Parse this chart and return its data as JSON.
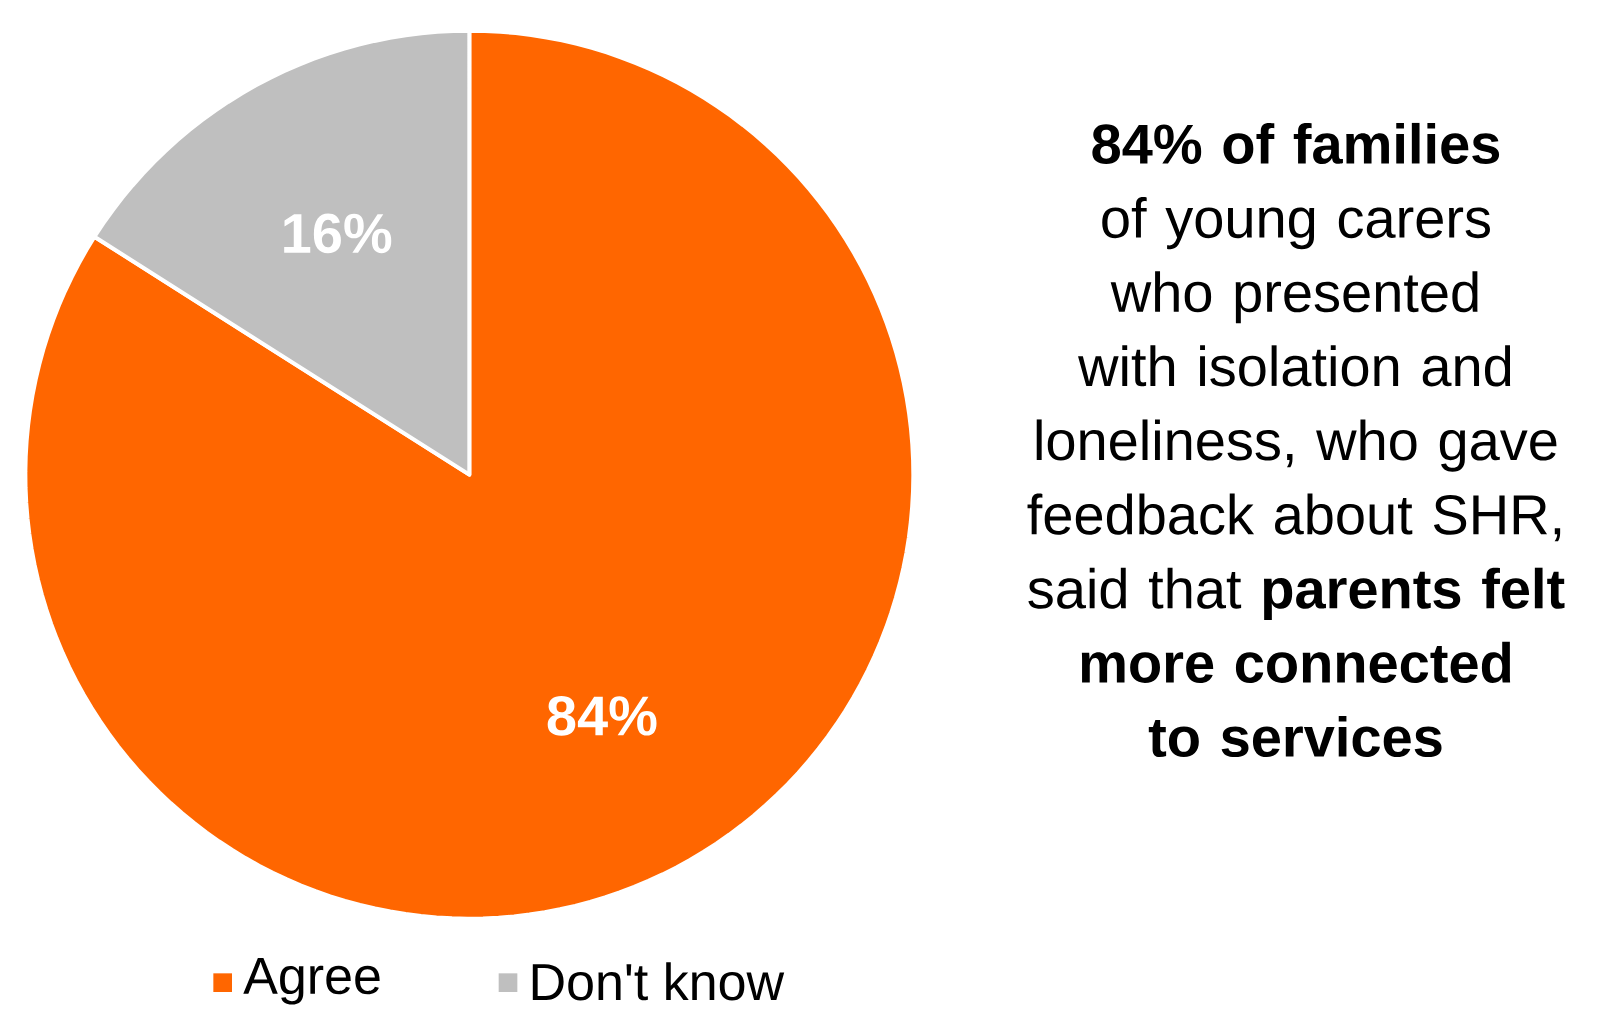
{
  "chart_data": {
    "type": "pie",
    "categories": [
      "Agree",
      "Don't know"
    ],
    "values": [
      84,
      16
    ],
    "colors": [
      "#ff6600",
      "#bfbfbf"
    ],
    "value_labels": [
      "84%",
      "16%"
    ],
    "legend": "bottom",
    "annotations": [
      "**84% of families** of young carers who presented with isolation and loneliness, who gave feedback about SHR, said that **parents felt more connected to services**"
    ]
  }
}
